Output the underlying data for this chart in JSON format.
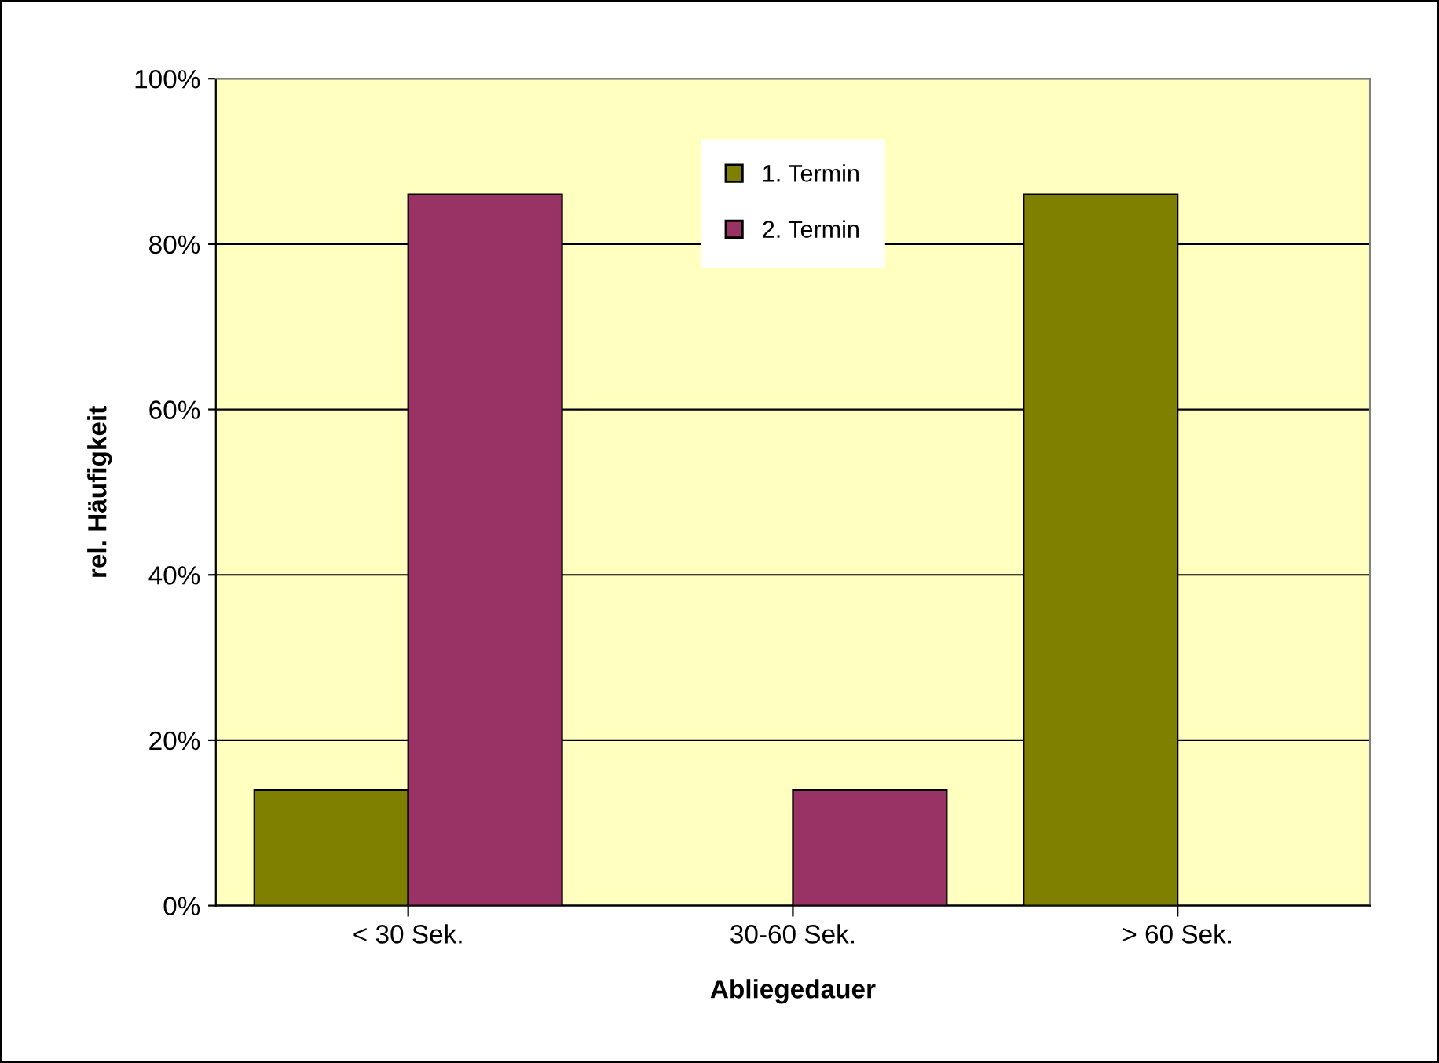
{
  "chart_data": {
    "type": "bar",
    "xlabel": "Abliegedauer",
    "ylabel": "rel. Häufigkeit",
    "categories": [
      "< 30 Sek.",
      "30-60 Sek.",
      "> 60 Sek."
    ],
    "series": [
      {
        "name": "1. Termin",
        "color": "#808000",
        "values": [
          14,
          0,
          86
        ]
      },
      {
        "name": "2. Termin",
        "color": "#993366",
        "values": [
          86,
          14,
          0
        ]
      }
    ],
    "ylim": [
      0,
      100
    ],
    "yticks": [
      {
        "value": 0,
        "label": "0%"
      },
      {
        "value": 20,
        "label": "20%"
      },
      {
        "value": 40,
        "label": "40%"
      },
      {
        "value": 60,
        "label": "60%"
      },
      {
        "value": 80,
        "label": "80%"
      },
      {
        "value": 100,
        "label": "100%"
      }
    ],
    "grid": "y",
    "legend": "top"
  }
}
